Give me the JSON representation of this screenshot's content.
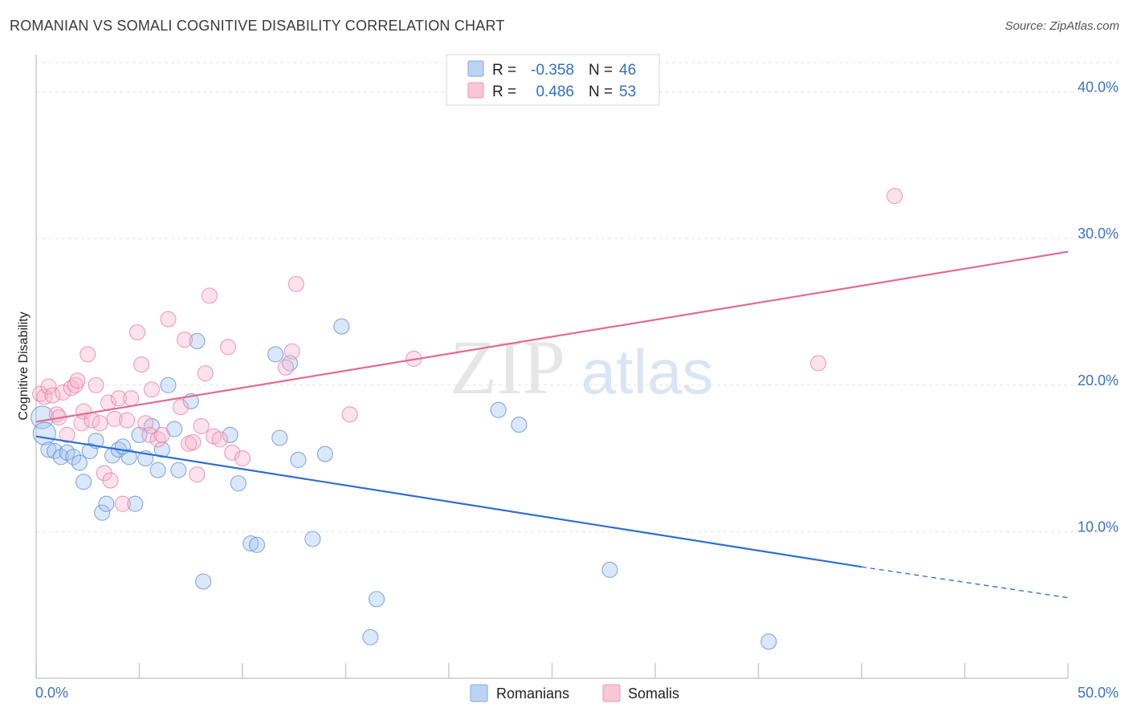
{
  "header": {
    "title": "ROMANIAN VS SOMALI COGNITIVE DISABILITY CORRELATION CHART",
    "source": "Source: ZipAtlas.com"
  },
  "watermark": {
    "zip": "ZIP",
    "atlas": "atlas"
  },
  "chart_data": {
    "type": "scatter",
    "ylabel": "Cognitive Disability",
    "xlim": [
      0,
      50
    ],
    "ylim": [
      0,
      42
    ],
    "x_ticks": [
      "0.0%",
      "50.0%"
    ],
    "y_ticks": [
      {
        "value": 10,
        "label": "10.0%"
      },
      {
        "value": 20,
        "label": "20.0%"
      },
      {
        "value": 30,
        "label": "30.0%"
      },
      {
        "value": 40,
        "label": "40.0%"
      }
    ],
    "grid": "horizontal dashed",
    "legend_position": "top-center",
    "colors": {
      "romanians": "#5b8fd6",
      "somalis": "#e97fa4",
      "romanians_line": "#2f6fcf",
      "somalis_line": "#e06b96"
    },
    "series": [
      {
        "name": "Romanians",
        "r_label": "R =",
        "r_value": "-0.358",
        "n_label": "N =",
        "n_value": "46",
        "trend": {
          "x1": 0,
          "y1": 16.5,
          "x2": 40,
          "y2": 7.6,
          "dash_to_x": 50,
          "dash_to_y": 5.5
        },
        "points": [
          [
            0.3,
            17.8
          ],
          [
            0.4,
            16.7
          ],
          [
            0.6,
            15.6
          ],
          [
            0.9,
            15.5
          ],
          [
            1.2,
            15.1
          ],
          [
            1.5,
            15.4
          ],
          [
            1.8,
            15.1
          ],
          [
            2.1,
            14.7
          ],
          [
            2.3,
            13.4
          ],
          [
            2.6,
            15.5
          ],
          [
            2.9,
            16.2
          ],
          [
            3.2,
            11.3
          ],
          [
            3.4,
            11.9
          ],
          [
            3.7,
            15.2
          ],
          [
            4.0,
            15.6
          ],
          [
            4.2,
            15.8
          ],
          [
            4.5,
            15.1
          ],
          [
            4.8,
            11.9
          ],
          [
            5.0,
            16.6
          ],
          [
            5.3,
            15.0
          ],
          [
            5.6,
            17.2
          ],
          [
            5.9,
            14.2
          ],
          [
            6.1,
            15.6
          ],
          [
            6.4,
            20.0
          ],
          [
            6.7,
            17.0
          ],
          [
            6.9,
            14.2
          ],
          [
            7.5,
            18.9
          ],
          [
            7.8,
            23.0
          ],
          [
            8.1,
            6.6
          ],
          [
            9.4,
            16.6
          ],
          [
            9.8,
            13.3
          ],
          [
            10.4,
            9.2
          ],
          [
            10.7,
            9.1
          ],
          [
            11.6,
            22.1
          ],
          [
            11.8,
            16.4
          ],
          [
            12.3,
            21.5
          ],
          [
            12.7,
            14.9
          ],
          [
            13.4,
            9.5
          ],
          [
            14.0,
            15.3
          ],
          [
            14.8,
            24.0
          ],
          [
            16.2,
            2.8
          ],
          [
            16.5,
            5.4
          ],
          [
            22.4,
            18.3
          ],
          [
            23.4,
            17.3
          ],
          [
            27.8,
            7.4
          ],
          [
            35.5,
            2.5
          ]
        ]
      },
      {
        "name": "Somalis",
        "r_label": "R =",
        "r_value": "0.486",
        "n_label": "N =",
        "n_value": "53",
        "trend": {
          "x1": 0,
          "y1": 17.5,
          "x2": 50,
          "y2": 29.1
        },
        "points": [
          [
            0.2,
            19.4
          ],
          [
            0.4,
            19.2
          ],
          [
            0.6,
            19.9
          ],
          [
            0.8,
            19.3
          ],
          [
            1.0,
            18.0
          ],
          [
            1.1,
            17.8
          ],
          [
            1.3,
            19.5
          ],
          [
            1.5,
            16.6
          ],
          [
            1.7,
            19.8
          ],
          [
            1.9,
            20.0
          ],
          [
            2.0,
            20.3
          ],
          [
            2.2,
            17.4
          ],
          [
            2.3,
            18.2
          ],
          [
            2.5,
            22.1
          ],
          [
            2.7,
            17.6
          ],
          [
            2.9,
            20.0
          ],
          [
            3.1,
            17.4
          ],
          [
            3.3,
            14.0
          ],
          [
            3.5,
            18.8
          ],
          [
            3.6,
            13.5
          ],
          [
            3.8,
            17.7
          ],
          [
            4.0,
            19.1
          ],
          [
            4.2,
            11.9
          ],
          [
            4.4,
            17.6
          ],
          [
            4.6,
            19.1
          ],
          [
            4.9,
            23.6
          ],
          [
            5.1,
            21.4
          ],
          [
            5.3,
            17.4
          ],
          [
            5.5,
            16.6
          ],
          [
            5.6,
            19.7
          ],
          [
            5.9,
            16.3
          ],
          [
            6.1,
            16.6
          ],
          [
            6.4,
            24.5
          ],
          [
            7.0,
            18.5
          ],
          [
            7.2,
            23.1
          ],
          [
            7.4,
            16.0
          ],
          [
            7.6,
            16.1
          ],
          [
            7.8,
            13.9
          ],
          [
            8.0,
            17.2
          ],
          [
            8.2,
            20.8
          ],
          [
            8.4,
            26.1
          ],
          [
            8.6,
            16.5
          ],
          [
            8.9,
            16.3
          ],
          [
            9.3,
            22.6
          ],
          [
            9.5,
            15.4
          ],
          [
            10.0,
            15.0
          ],
          [
            12.1,
            21.2
          ],
          [
            12.4,
            22.3
          ],
          [
            12.6,
            26.9
          ],
          [
            15.2,
            18.0
          ],
          [
            18.3,
            21.8
          ],
          [
            37.9,
            21.5
          ],
          [
            41.6,
            32.9
          ]
        ]
      }
    ],
    "bottom_legend": [
      "Romanians",
      "Somalis"
    ]
  }
}
